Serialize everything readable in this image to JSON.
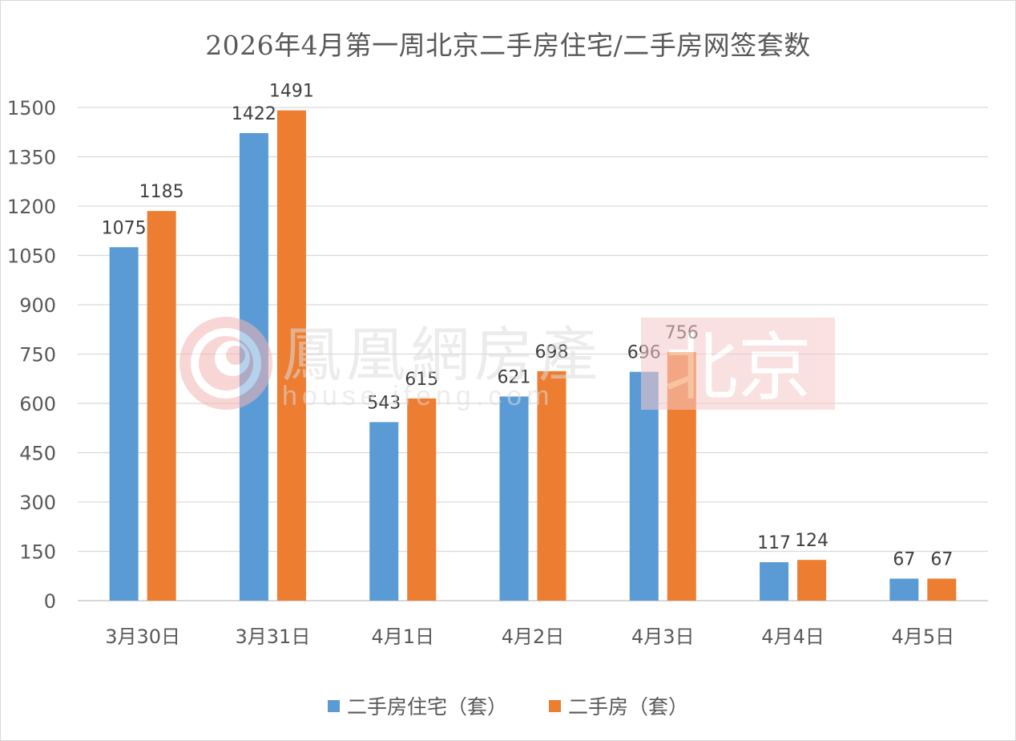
{
  "chart_data": {
    "type": "bar",
    "title": "2026年4月第一周北京二手房住宅/二手房网签套数",
    "categories": [
      "3月30日",
      "3月31日",
      "4月1日",
      "4月2日",
      "4月3日",
      "4月4日",
      "4月5日"
    ],
    "series": [
      {
        "name": "二手房住宅（套）",
        "color": "#5b9bd5",
        "values": [
          1075,
          1422,
          543,
          621,
          696,
          117,
          67
        ]
      },
      {
        "name": "二手房（套）",
        "color": "#ed7d31",
        "values": [
          1185,
          1491,
          615,
          698,
          756,
          124,
          67
        ]
      }
    ],
    "ylim": [
      0,
      1500
    ],
    "yticks": [
      0,
      150,
      300,
      450,
      600,
      750,
      900,
      1050,
      1200,
      1350,
      1500
    ],
    "grid": true,
    "legend_position": "bottom"
  },
  "watermark": {
    "brand_text": "鳳凰網房產",
    "url_text": "house.ifeng.com",
    "city_text": "北京"
  }
}
